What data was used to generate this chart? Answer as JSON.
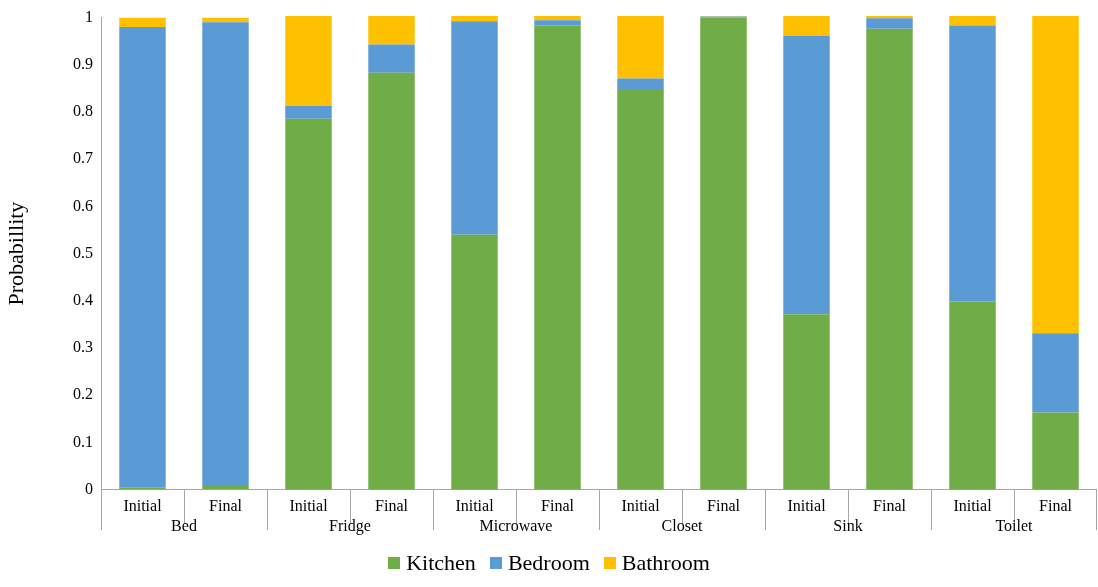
{
  "chart_data": [
    {
      "type": "bar",
      "stacked": true,
      "xlabel": "Bed",
      "ylabel": "Probabillity",
      "categories": [
        "Initial",
        "Final"
      ],
      "ylim": [
        0,
        1
      ],
      "yticks": [
        0,
        0.1,
        0.2,
        0.3,
        0.4,
        0.5,
        0.6,
        0.7,
        0.8,
        0.9,
        1
      ],
      "legend": "bottom",
      "series": [
        {
          "name": "Kitchen",
          "color": "#70ad47",
          "values": [
            0.005,
            0.01
          ]
        },
        {
          "name": "Bedroom",
          "color": "#5b9bd5",
          "values": [
            0.975,
            0.98
          ]
        },
        {
          "name": "Bathroom",
          "color": "#ffc000",
          "values": [
            0.02,
            0.01
          ]
        }
      ]
    },
    {
      "type": "bar",
      "stacked": true,
      "xlabel": "Fridge",
      "categories": [
        "Initial",
        "Final"
      ],
      "ylim": [
        0,
        1
      ],
      "yticks": [
        0,
        0.1,
        0.2,
        0.3,
        0.4,
        0.5,
        0.6,
        0.7,
        0.8,
        0.9,
        1
      ],
      "tick_labels": "x",
      "series": [
        {
          "color": "#70ad47",
          "values": [
            0.783,
            0.88
          ]
        },
        {
          "color": "#5b9bd5",
          "values": [
            0.027,
            0.06
          ]
        },
        {
          "color": "#ffc000",
          "values": [
            0.19,
            0.06
          ]
        }
      ]
    },
    {
      "type": "bar",
      "stacked": true,
      "xlabel": "Microwave",
      "categories": [
        "Initial",
        "Final"
      ],
      "ylim": [
        0,
        1
      ],
      "yticks": [
        0,
        0.1,
        0.2,
        0.3,
        0.4,
        0.5,
        0.6,
        0.7,
        0.8,
        0.9,
        1
      ],
      "tick_labels": "x",
      "series": [
        {
          "color": "#70ad47",
          "values": [
            0.538,
            0.98
          ]
        },
        {
          "color": "#5b9bd5",
          "values": [
            0.451,
            0.011
          ]
        },
        {
          "color": "#ffc000",
          "values": [
            0.011,
            0.009
          ]
        }
      ]
    },
    {
      "type": "bar",
      "stacked": true,
      "xlabel": "Closet",
      "categories": [
        "Initial",
        "Final"
      ],
      "ylim": [
        0,
        1
      ],
      "yticks": [
        0,
        0.1,
        0.2,
        0.3,
        0.4,
        0.5,
        0.6,
        0.7,
        0.8,
        0.9,
        1
      ],
      "tick_labels": "x",
      "series": [
        {
          "color": "#70ad47",
          "values": [
            0.846,
            0.997
          ]
        },
        {
          "color": "#5b9bd5",
          "values": [
            0.022,
            0.002
          ]
        },
        {
          "color": "#ffc000",
          "values": [
            0.132,
            0.001
          ]
        }
      ]
    },
    {
      "type": "bar",
      "stacked": true,
      "xlabel": "Sink",
      "categories": [
        "Initial",
        "Final"
      ],
      "ylim": [
        0,
        1
      ],
      "yticks": [
        0,
        0.1,
        0.2,
        0.3,
        0.4,
        0.5,
        0.6,
        0.7,
        0.8,
        0.9,
        1
      ],
      "tick_labels": "x",
      "series": [
        {
          "color": "#70ad47",
          "values": [
            0.37,
            0.973
          ]
        },
        {
          "color": "#5b9bd5",
          "values": [
            0.588,
            0.022
          ]
        },
        {
          "color": "#ffc000",
          "values": [
            0.042,
            0.005
          ]
        }
      ]
    },
    {
      "type": "bar",
      "stacked": true,
      "xlabel": "Toilet",
      "categories": [
        "Initial",
        "Final"
      ],
      "ylim": [
        0,
        1
      ],
      "yticks": [
        0,
        0.1,
        0.2,
        0.3,
        0.4,
        0.5,
        0.6,
        0.7,
        0.8,
        0.9,
        1
      ],
      "tick_labels": "x",
      "series": [
        {
          "color": "#70ad47",
          "values": [
            0.397,
            0.163
          ]
        },
        {
          "color": "#5b9bd5",
          "values": [
            0.583,
            0.167
          ]
        },
        {
          "color": "#ffc000",
          "values": [
            0.02,
            0.67
          ]
        }
      ]
    }
  ]
}
